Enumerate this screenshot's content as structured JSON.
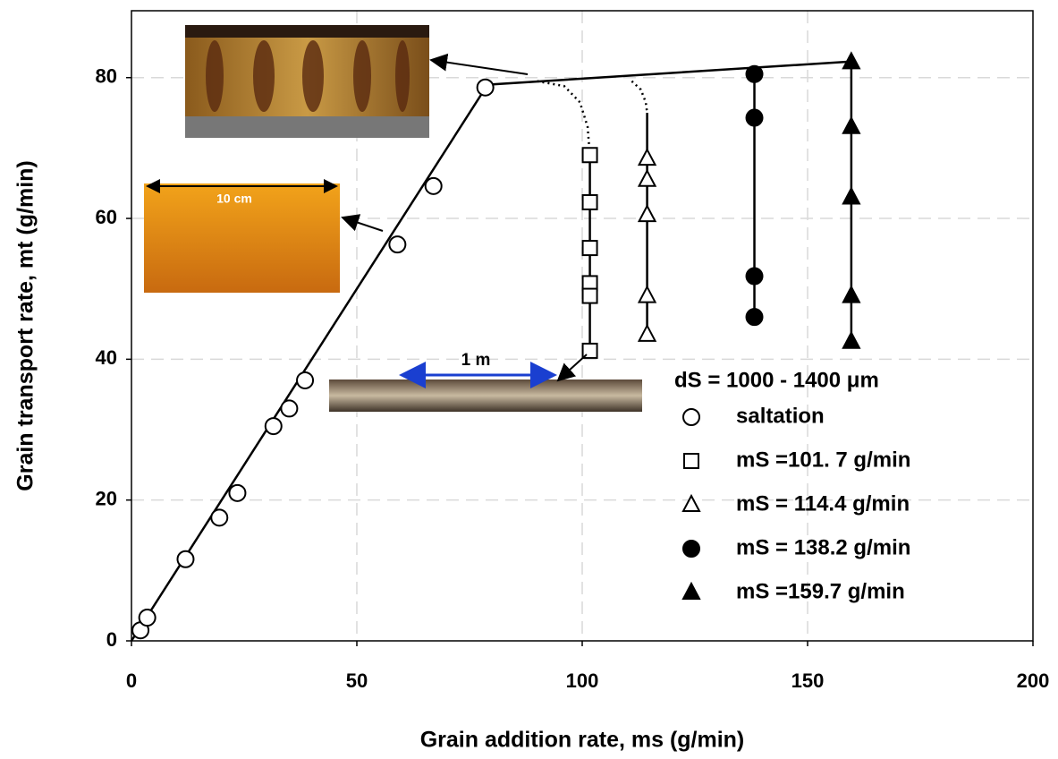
{
  "chart_data": {
    "type": "scatter",
    "x_label": "Grain addition rate, ms (g/min)",
    "y_label": "Grain transport rate, mt (g/min)",
    "xlim": [
      0,
      200
    ],
    "ylim": [
      0,
      89.5
    ],
    "xticks": [
      0,
      50,
      100,
      150,
      200
    ],
    "yticks": [
      0,
      20,
      40,
      60,
      80
    ],
    "grid": true,
    "legend_title": "dS = 1000 - 1400 μm",
    "series": [
      {
        "name": "saltation",
        "color": "#000000",
        "marker": "circle",
        "filled": false,
        "connect": false,
        "x": [
          2,
          3.5,
          12,
          19.5,
          23.5,
          31.5,
          35,
          38.5,
          59,
          67,
          78.5
        ],
        "values": [
          1.5,
          3.3,
          11.6,
          17.5,
          21,
          30.5,
          33,
          37,
          56.3,
          64.6,
          78.6
        ]
      },
      {
        "name": "mS =101. 7 g/min",
        "color": "#000000",
        "marker": "square",
        "filled": false,
        "connect": true,
        "x": [
          101.7,
          101.7,
          101.7,
          101.7,
          101.7,
          101.7
        ],
        "values": [
          69,
          62.3,
          55.8,
          50.8,
          49,
          41.2
        ]
      },
      {
        "name": "mS = 114.4 g/min",
        "color": "#000000",
        "marker": "triangle",
        "filled": false,
        "connect": true,
        "x": [
          114.4,
          114.4,
          114.4,
          114.4,
          114.4
        ],
        "values": [
          68.5,
          65.5,
          60.5,
          49,
          43.5
        ]
      },
      {
        "name": "mS = 138.2 g/min",
        "color": "#000000",
        "marker": "circle",
        "filled": true,
        "connect": true,
        "x": [
          138.2,
          138.2,
          138.2,
          138.2
        ],
        "values": [
          80.5,
          74.3,
          51.8,
          46
        ]
      },
      {
        "name": "mS =159.7 g/min",
        "color": "#000000",
        "marker": "triangle",
        "filled": true,
        "connect": true,
        "x": [
          159.7,
          159.7,
          159.7,
          159.7,
          159.7
        ],
        "values": [
          82.2,
          73,
          63,
          49,
          42.5
        ]
      }
    ],
    "curves": [
      {
        "x": [
          0,
          79,
          160
        ],
        "y": [
          0,
          79,
          82.3
        ],
        "dashed": false
      },
      {
        "x": [
          90,
          96,
          99.5,
          101.2,
          101.7
        ],
        "y": [
          79.5,
          78.8,
          76.5,
          73,
          69
        ],
        "dashed": true
      },
      {
        "x": [
          111,
          113,
          114.1,
          114.4
        ],
        "y": [
          79.5,
          78.3,
          76.5,
          75
        ],
        "dashed": true
      },
      {
        "x": [
          114.4,
          114.4
        ],
        "y": [
          75,
          68.5
        ],
        "dashed": false
      }
    ],
    "annotations": [
      "10 cm",
      "1 m"
    ]
  }
}
